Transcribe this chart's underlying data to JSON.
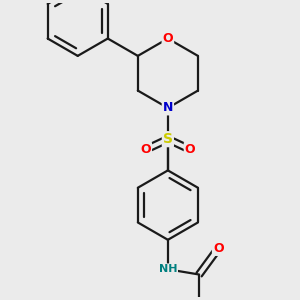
{
  "background_color": "#ebebeb",
  "fig_size": [
    3.0,
    3.0
  ],
  "dpi": 100,
  "bond_color": "#1a1a1a",
  "atom_colors": {
    "O": "#ff0000",
    "N": "#0000cc",
    "S": "#cccc00",
    "NH": "#008080",
    "C": "#1a1a1a"
  },
  "font_size": 9,
  "line_width": 1.6
}
